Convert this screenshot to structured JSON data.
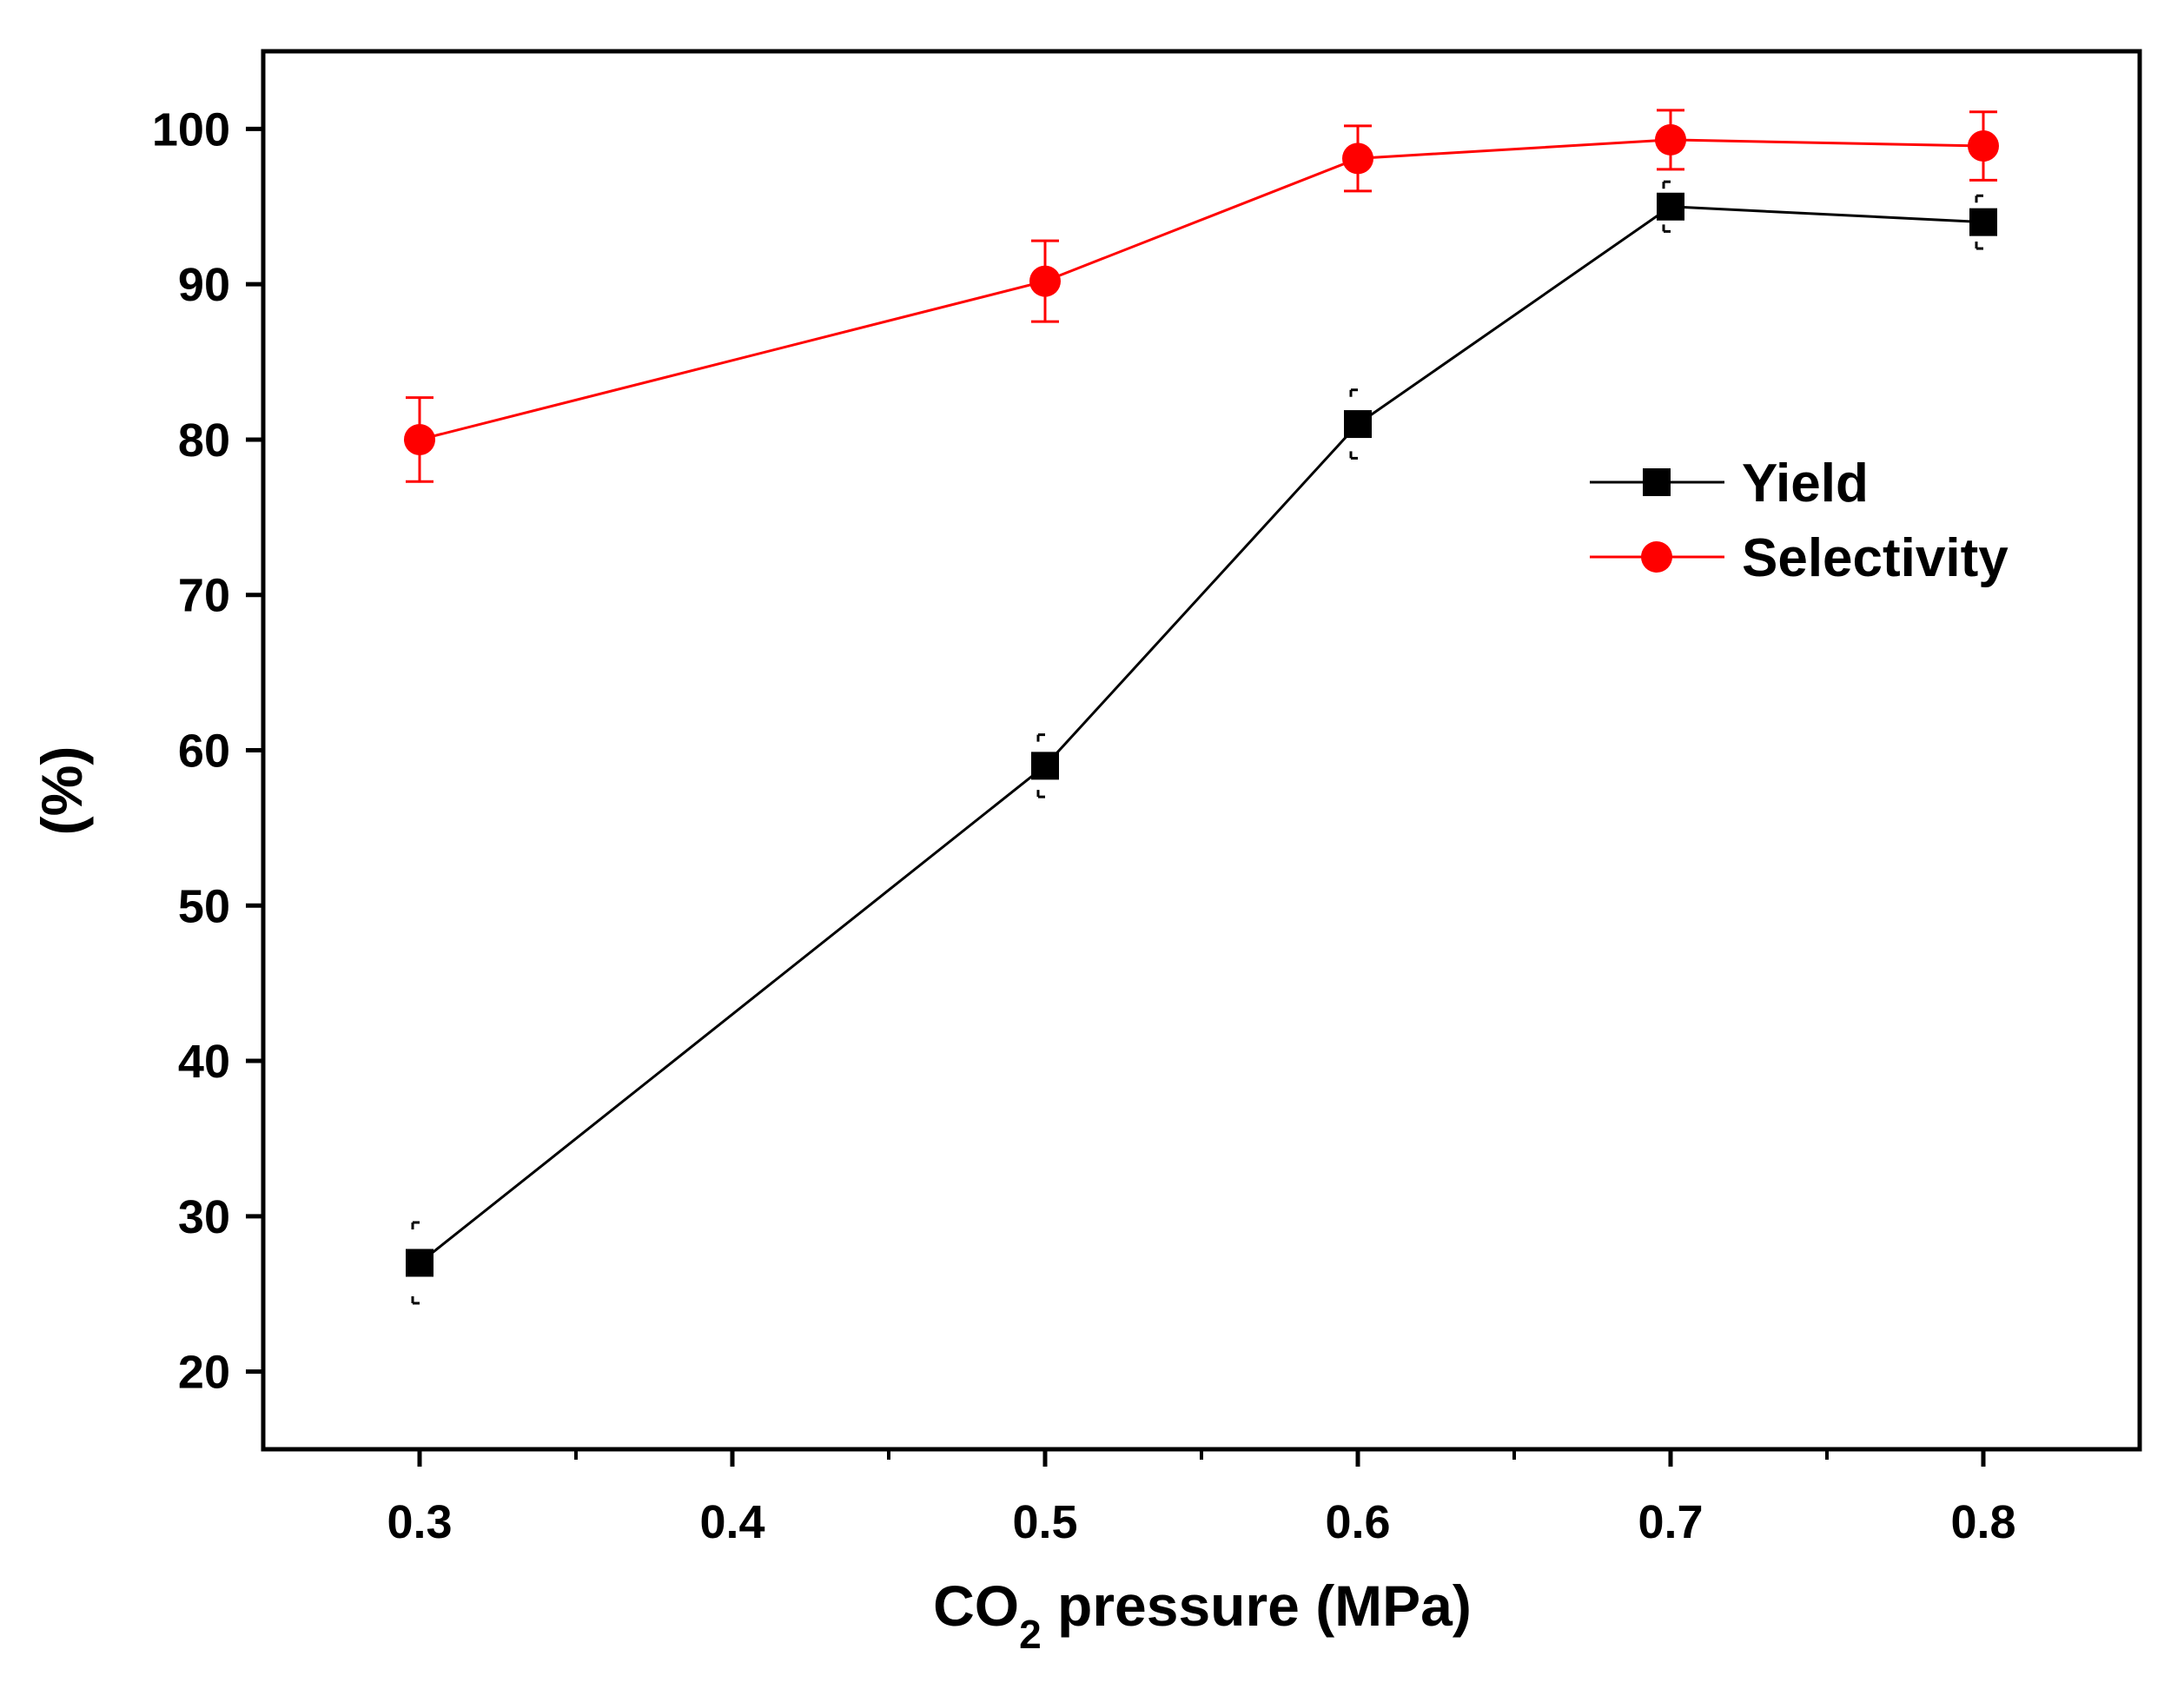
{
  "chart_data": {
    "type": "line",
    "title": "",
    "xlabel": {
      "main": "CO",
      "subscript": "2",
      "rest": " pressure (MPa)"
    },
    "ylabel": "(%)",
    "xlim": [
      0.25,
      0.85
    ],
    "ylim": [
      15,
      105
    ],
    "x_major_ticks": [
      0.3,
      0.4,
      0.5,
      0.6,
      0.7,
      0.8
    ],
    "x_tick_labels": [
      "0.3",
      "0.4",
      "0.5",
      "0.6",
      "0.7",
      "0.8"
    ],
    "x_minor_ticks": [
      0.35,
      0.45,
      0.55,
      0.65,
      0.75
    ],
    "y_major_ticks": [
      20,
      30,
      40,
      50,
      60,
      70,
      80,
      90,
      100
    ],
    "y_tick_labels": [
      "20",
      "30",
      "40",
      "50",
      "60",
      "70",
      "80",
      "90",
      "100"
    ],
    "grid": false,
    "legend_position": "right",
    "series": [
      {
        "name": "Yield",
        "color": "#000000",
        "marker": "square",
        "x": [
          0.3,
          0.5,
          0.6,
          0.7,
          0.8
        ],
        "values": [
          27,
          59,
          81,
          95,
          94
        ],
        "error": [
          2.6,
          2.0,
          2.2,
          1.6,
          1.7
        ]
      },
      {
        "name": "Selectivity",
        "color": "#ff0000",
        "marker": "circle",
        "x": [
          0.3,
          0.5,
          0.6,
          0.7,
          0.8
        ],
        "values": [
          80,
          90.2,
          98.1,
          99.3,
          98.9
        ],
        "error": [
          2.7,
          2.6,
          2.1,
          1.9,
          2.2
        ]
      }
    ]
  }
}
